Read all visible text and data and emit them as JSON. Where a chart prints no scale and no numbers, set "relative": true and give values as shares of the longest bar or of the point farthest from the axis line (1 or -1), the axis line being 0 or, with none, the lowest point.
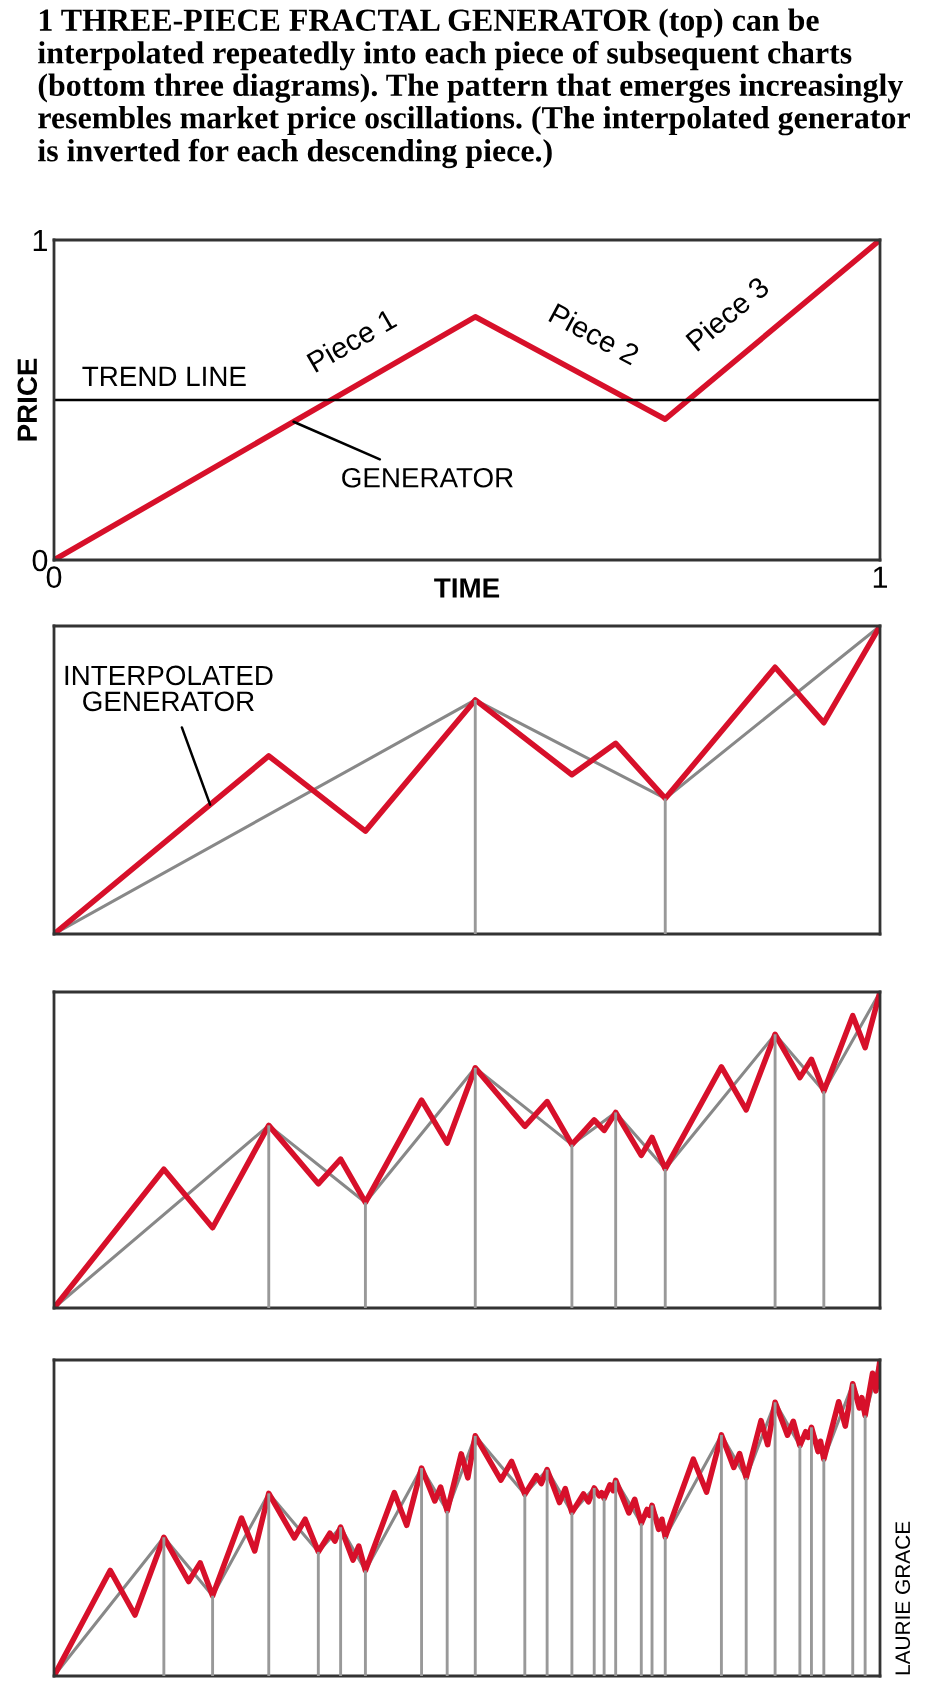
{
  "chart_data": [
    {
      "type": "line",
      "title": "1 THREE-PIECE FRACTAL GENERATOR (top) can be interpolated repeatedly into each piece of subsequent charts (bottom three diagrams). The pattern that emerges increasingly resembles market price oscillations. (The interpolated generator is inverted for each descending piece.)",
      "xlabel": "TIME",
      "ylabel": "PRICE",
      "xlim": [
        0,
        1
      ],
      "ylim": [
        0,
        1
      ],
      "xticks": [
        0,
        1
      ],
      "yticks": [
        0,
        1
      ],
      "series": [
        {
          "color": "#d7102a",
          "x": [
            0,
            0.51,
            0.74,
            1
          ],
          "values": [
            0,
            0.76,
            0.44,
            1
          ]
        }
      ],
      "ref_lines": [
        {
          "axis": "y",
          "value": 0.5,
          "label": "TREND LINE",
          "color": "#000000"
        }
      ],
      "annotations": [
        {
          "text": "Piece 1",
          "x": 0.385,
          "y": 0.574
        },
        {
          "text": "Piece 2",
          "x": 0.63,
          "y": 0.593
        },
        {
          "text": "Piece 3",
          "x": 0.847,
          "y": 0.67
        },
        {
          "text": "GENERATOR",
          "x": 0.29,
          "y": 0.432
        }
      ]
    },
    {
      "type": "line",
      "relative": true,
      "xlim": [
        0,
        1
      ],
      "series": [
        {
          "type": "bar",
          "color": "#999999",
          "x": [
            0.51,
            0.74
          ],
          "values": [
            0.76,
            0.44
          ]
        },
        {
          "type": "line",
          "color": "#888888",
          "x": [
            0,
            0.51,
            0.74,
            1
          ],
          "values": [
            0,
            0.76,
            0.44,
            1
          ]
        },
        {
          "type": "line",
          "color": "#d7102a",
          "x": [
            0.0,
            0.26,
            0.377,
            0.51,
            0.627,
            0.68,
            0.74,
            0.873,
            0.932,
            1.0
          ],
          "values": [
            0.0,
            0.578,
            0.334,
            0.76,
            0.517,
            0.619,
            0.44,
            0.866,
            0.686,
            1.0
          ]
        }
      ],
      "annotations": [
        {
          "text": "INTERPOLATED\nGENERATOR",
          "x": 0.189,
          "y": 0.42
        }
      ]
    },
    {
      "type": "line",
      "relative": true,
      "xlim": [
        0,
        1
      ],
      "series": [
        {
          "type": "bar",
          "color": "#999999",
          "x": [
            0.26,
            0.377,
            0.51,
            0.627,
            0.68,
            0.74,
            0.873,
            0.932
          ],
          "values": [
            0.578,
            0.334,
            0.76,
            0.517,
            0.619,
            0.44,
            0.866,
            0.686
          ]
        },
        {
          "type": "line",
          "color": "#888888",
          "x": [
            0.0,
            0.26,
            0.377,
            0.51,
            0.627,
            0.68,
            0.74,
            0.873,
            0.932,
            1.0
          ],
          "values": [
            0.0,
            0.578,
            0.334,
            0.76,
            0.517,
            0.619,
            0.44,
            0.866,
            0.686,
            1.0
          ]
        },
        {
          "type": "line",
          "color": "#d7102a",
          "x": [
            0.0,
            0.133,
            0.192,
            0.26,
            0.32,
            0.347,
            0.377,
            0.445,
            0.476,
            0.51,
            0.57,
            0.597,
            0.627,
            0.654,
            0.666,
            0.68,
            0.711,
            0.724,
            0.74,
            0.808,
            0.838,
            0.873,
            0.903,
            0.917,
            0.932,
            0.967,
            0.982,
            1.0
          ],
          "values": [
            0.0,
            0.439,
            0.254,
            0.578,
            0.393,
            0.471,
            0.334,
            0.658,
            0.522,
            0.76,
            0.575,
            0.653,
            0.517,
            0.595,
            0.562,
            0.619,
            0.483,
            0.54,
            0.44,
            0.763,
            0.627,
            0.866,
            0.729,
            0.787,
            0.686,
            0.925,
            0.824,
            1.0
          ]
        }
      ]
    },
    {
      "type": "line",
      "relative": true,
      "xlim": [
        0,
        1
      ],
      "series": [
        {
          "type": "bar",
          "color": "#999999",
          "x": [
            0.133,
            0.192,
            0.26,
            0.32,
            0.347,
            0.377,
            0.445,
            0.476,
            0.51,
            0.57,
            0.597,
            0.627,
            0.654,
            0.666,
            0.68,
            0.711,
            0.724,
            0.74,
            0.808,
            0.838,
            0.873,
            0.903,
            0.917,
            0.932,
            0.967,
            0.982
          ],
          "values": [
            0.439,
            0.254,
            0.578,
            0.393,
            0.471,
            0.334,
            0.658,
            0.522,
            0.76,
            0.575,
            0.653,
            0.517,
            0.595,
            0.562,
            0.619,
            0.483,
            0.54,
            0.44,
            0.763,
            0.627,
            0.866,
            0.729,
            0.787,
            0.686,
            0.925,
            0.824
          ]
        },
        {
          "type": "line",
          "color": "#888888",
          "x": [
            0.0,
            0.133,
            0.192,
            0.26,
            0.32,
            0.347,
            0.377,
            0.445,
            0.476,
            0.51,
            0.57,
            0.597,
            0.627,
            0.654,
            0.666,
            0.68,
            0.711,
            0.724,
            0.74,
            0.808,
            0.838,
            0.873,
            0.903,
            0.917,
            0.932,
            0.967,
            0.982,
            1.0
          ],
          "values": [
            0.0,
            0.439,
            0.254,
            0.578,
            0.393,
            0.471,
            0.334,
            0.658,
            0.522,
            0.76,
            0.575,
            0.653,
            0.517,
            0.595,
            0.562,
            0.619,
            0.483,
            0.54,
            0.44,
            0.763,
            0.627,
            0.866,
            0.729,
            0.787,
            0.686,
            0.925,
            0.824,
            1.0
          ]
        },
        {
          "type": "line",
          "color": "#d7102a",
          "x": [
            0.0,
            0.068,
            0.098,
            0.133,
            0.163,
            0.177,
            0.192,
            0.227,
            0.243,
            0.26,
            0.291,
            0.304,
            0.32,
            0.334,
            0.34,
            0.347,
            0.362,
            0.369,
            0.377,
            0.412,
            0.427,
            0.445,
            0.461,
            0.468,
            0.476,
            0.493,
            0.501,
            0.51,
            0.541,
            0.554,
            0.57,
            0.584,
            0.59,
            0.597,
            0.612,
            0.619,
            0.627,
            0.641,
            0.647,
            0.654,
            0.66,
            0.663,
            0.666,
            0.673,
            0.677,
            0.68,
            0.696,
            0.703,
            0.711,
            0.718,
            0.721,
            0.724,
            0.732,
            0.736,
            0.74,
            0.774,
            0.79,
            0.808,
            0.823,
            0.83,
            0.838,
            0.856,
            0.864,
            0.873,
            0.888,
            0.895,
            0.903,
            0.91,
            0.913,
            0.917,
            0.925,
            0.928,
            0.932,
            0.95,
            0.958,
            0.967,
            0.975,
            0.978,
            0.982,
            0.991,
            0.995,
            1.0
          ],
          "values": [
            0.0,
            0.334,
            0.193,
            0.439,
            0.299,
            0.358,
            0.254,
            0.5,
            0.396,
            0.578,
            0.437,
            0.496,
            0.393,
            0.452,
            0.427,
            0.471,
            0.367,
            0.411,
            0.334,
            0.58,
            0.477,
            0.658,
            0.554,
            0.598,
            0.522,
            0.703,
            0.627,
            0.76,
            0.62,
            0.679,
            0.575,
            0.634,
            0.609,
            0.653,
            0.549,
            0.593,
            0.517,
            0.576,
            0.551,
            0.595,
            0.57,
            0.58,
            0.562,
            0.605,
            0.587,
            0.619,
            0.516,
            0.559,
            0.483,
            0.527,
            0.508,
            0.54,
            0.464,
            0.496,
            0.44,
            0.686,
            0.582,
            0.763,
            0.66,
            0.704,
            0.627,
            0.808,
            0.732,
            0.866,
            0.762,
            0.806,
            0.729,
            0.773,
            0.755,
            0.787,
            0.71,
            0.743,
            0.686,
            0.868,
            0.791,
            0.925,
            0.848,
            0.881,
            0.824,
            0.958,
            0.902,
            1.0
          ]
        }
      ],
      "annotations": [
        "LAURIE GRACE"
      ]
    }
  ]
}
